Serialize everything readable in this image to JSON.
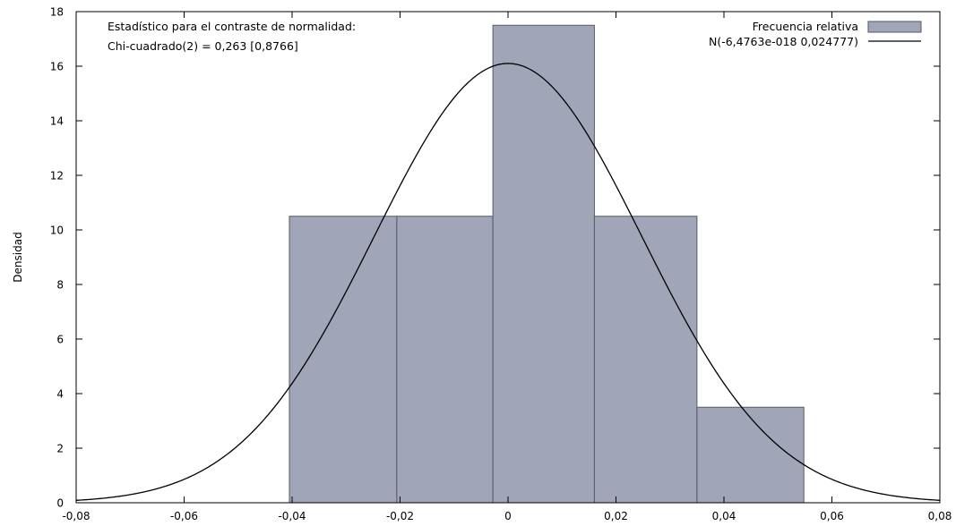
{
  "chart_data": {
    "type": "bar",
    "ylabel": "Densidad",
    "xlabel": "",
    "xlim": [
      -0.08,
      0.08
    ],
    "ylim": [
      0,
      18
    ],
    "xticks": [
      -0.08,
      -0.06,
      -0.04,
      -0.02,
      0,
      0.02,
      0.04,
      0.06,
      0.08
    ],
    "xtick_labels": [
      "-0,08",
      "-0,06",
      "-0,04",
      "-0,02",
      "0",
      "0,02",
      "0,04",
      "0,06",
      "0,08"
    ],
    "yticks": [
      0,
      2,
      4,
      6,
      8,
      10,
      12,
      14,
      16,
      18
    ],
    "ytick_labels": [
      "0",
      "2",
      "4",
      "6",
      "8",
      "10",
      "12",
      "14",
      "16",
      "18"
    ],
    "histogram": {
      "bins": [
        {
          "from": -0.0405,
          "to": -0.0206,
          "density": 10.5
        },
        {
          "from": -0.0206,
          "to": -0.0028,
          "density": 10.5
        },
        {
          "from": -0.0028,
          "to": 0.016,
          "density": 17.5
        },
        {
          "from": 0.016,
          "to": 0.035,
          "density": 10.5
        },
        {
          "from": 0.035,
          "to": 0.0548,
          "density": 3.5
        }
      ],
      "color": "#a0a6b7",
      "edge_color": "#555a66"
    },
    "normal_curve": {
      "mean": -6.4763e-18,
      "sd": 0.024777,
      "color": "#000000"
    },
    "legend": {
      "placement": "top-right",
      "entries": [
        {
          "label": "Frecuencia relativa",
          "kind": "box"
        },
        {
          "label": "N(-6,4763e-018 0,024777)",
          "kind": "line"
        }
      ]
    },
    "annotation": [
      "Estadístico para el contraste de normalidad:",
      "Chi-cuadrado(2) = 0,263 [0,8766]"
    ],
    "grid": false
  }
}
